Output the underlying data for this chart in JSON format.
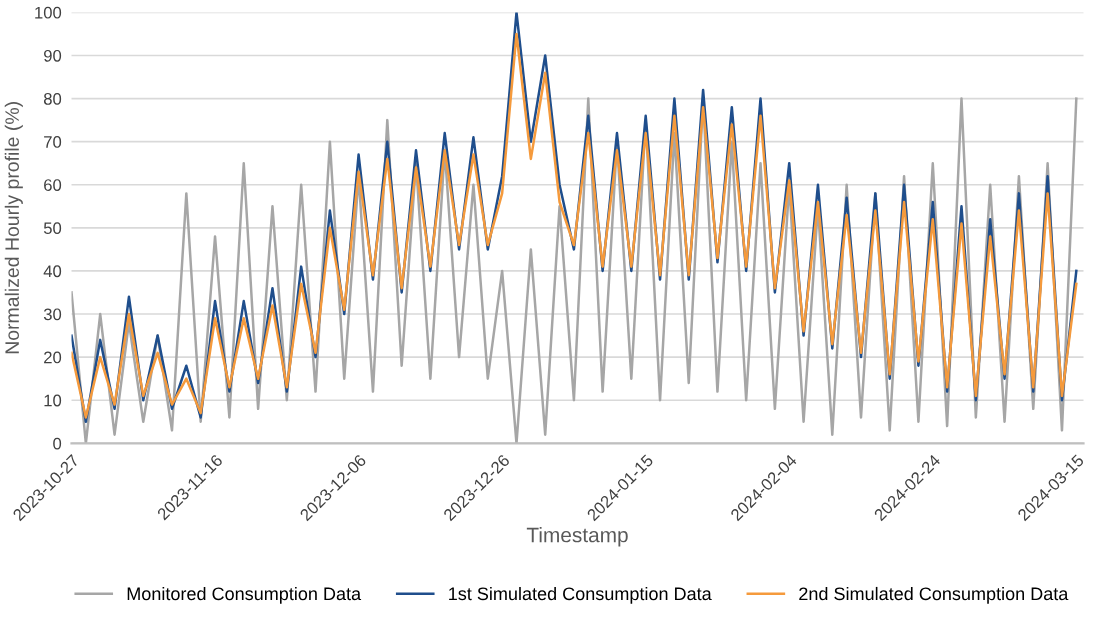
{
  "chart_data": {
    "type": "line",
    "xlabel": "Timestamp",
    "ylabel": "Normalized Hourly profile (%)",
    "x": [
      "2023-10-27",
      "2023-10-29",
      "2023-10-31",
      "2023-11-02",
      "2023-11-04",
      "2023-11-06",
      "2023-11-08",
      "2023-11-10",
      "2023-11-12",
      "2023-11-14",
      "2023-11-16",
      "2023-11-18",
      "2023-11-20",
      "2023-11-22",
      "2023-11-24",
      "2023-11-26",
      "2023-11-28",
      "2023-11-30",
      "2023-12-02",
      "2023-12-04",
      "2023-12-06",
      "2023-12-08",
      "2023-12-10",
      "2023-12-12",
      "2023-12-14",
      "2023-12-16",
      "2023-12-18",
      "2023-12-20",
      "2023-12-22",
      "2023-12-24",
      "2023-12-26",
      "2023-12-28",
      "2023-12-30",
      "2024-01-01",
      "2024-01-03",
      "2024-01-05",
      "2024-01-07",
      "2024-01-09",
      "2024-01-11",
      "2024-01-13",
      "2024-01-15",
      "2024-01-17",
      "2024-01-19",
      "2024-01-21",
      "2024-01-23",
      "2024-01-25",
      "2024-01-27",
      "2024-01-29",
      "2024-01-31",
      "2024-02-02",
      "2024-02-04",
      "2024-02-06",
      "2024-02-08",
      "2024-02-10",
      "2024-02-12",
      "2024-02-14",
      "2024-02-16",
      "2024-02-18",
      "2024-02-20",
      "2024-02-22",
      "2024-02-24",
      "2024-02-26",
      "2024-02-28",
      "2024-03-01",
      "2024-03-03",
      "2024-03-05",
      "2024-03-07",
      "2024-03-09",
      "2024-03-11",
      "2024-03-13",
      "2024-03-15"
    ],
    "series": [
      {
        "name": "Monitored Consumption Data",
        "color": "#a6a6a6",
        "values": [
          35,
          0,
          30,
          2,
          28,
          5,
          25,
          3,
          58,
          5,
          48,
          6,
          65,
          8,
          55,
          10,
          60,
          12,
          70,
          15,
          62,
          12,
          75,
          18,
          65,
          15,
          68,
          20,
          60,
          15,
          40,
          0,
          45,
          2,
          55,
          10,
          80,
          12,
          70,
          15,
          75,
          10,
          72,
          14,
          80,
          12,
          70,
          10,
          65,
          8,
          60,
          5,
          55,
          2,
          60,
          6,
          58,
          3,
          62,
          5,
          65,
          4,
          80,
          6,
          60,
          5,
          62,
          8,
          65,
          3,
          80
        ]
      },
      {
        "name": "1st Simulated Consumption Data",
        "color": "#1f4e8c",
        "values": [
          25,
          5,
          24,
          8,
          34,
          10,
          25,
          8,
          18,
          6,
          33,
          12,
          33,
          14,
          36,
          12,
          41,
          20,
          54,
          30,
          67,
          38,
          70,
          35,
          68,
          40,
          72,
          45,
          71,
          45,
          62,
          100,
          70,
          90,
          60,
          45,
          76,
          40,
          72,
          40,
          76,
          38,
          80,
          38,
          82,
          42,
          78,
          40,
          80,
          35,
          65,
          25,
          60,
          22,
          57,
          20,
          58,
          15,
          60,
          18,
          56,
          12,
          55,
          10,
          52,
          15,
          58,
          12,
          62,
          10,
          40
        ]
      },
      {
        "name": "2nd Simulated Consumption Data",
        "color": "#f59a3c",
        "values": [
          21,
          6,
          20,
          9,
          30,
          11,
          21,
          9,
          15,
          7,
          29,
          13,
          29,
          15,
          32,
          13,
          37,
          21,
          50,
          31,
          63,
          39,
          66,
          36,
          64,
          41,
          68,
          46,
          67,
          46,
          58,
          95,
          66,
          86,
          56,
          46,
          72,
          41,
          68,
          41,
          72,
          39,
          76,
          39,
          78,
          43,
          74,
          41,
          76,
          36,
          61,
          26,
          56,
          23,
          53,
          21,
          54,
          16,
          56,
          19,
          52,
          13,
          51,
          11,
          48,
          16,
          54,
          13,
          58,
          11,
          37
        ]
      }
    ],
    "xlim": [
      "2023-10-27",
      "2024-03-16"
    ],
    "xticks": [
      "2023-10-27",
      "2023-11-16",
      "2023-12-06",
      "2023-12-26",
      "2024-01-15",
      "2024-02-04",
      "2024-02-24",
      "2024-03-15"
    ],
    "ylim": [
      0,
      100
    ],
    "yticks": [
      0,
      10,
      20,
      30,
      40,
      50,
      60,
      70,
      80,
      90,
      100
    ],
    "grid": "y",
    "legend": "bottom",
    "marker": "none",
    "line_style": "solid"
  }
}
